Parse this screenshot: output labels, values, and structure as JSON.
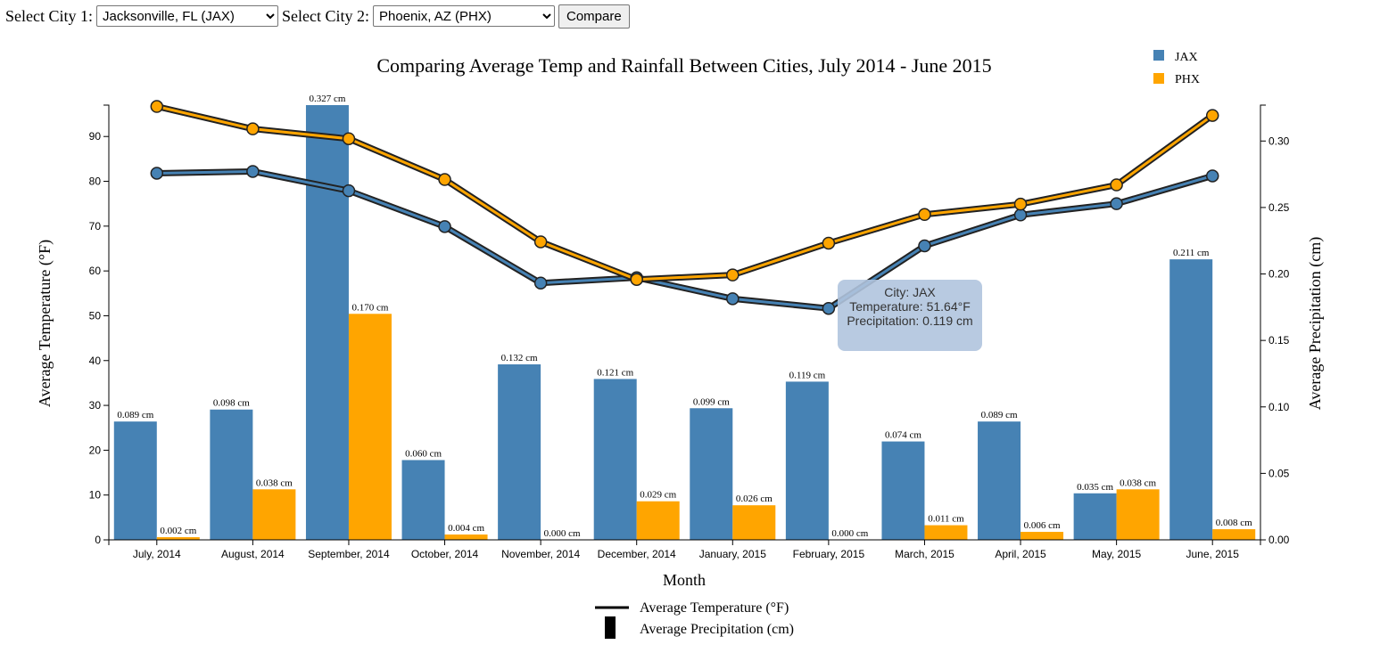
{
  "controls": {
    "city1_label": "Select City 1:",
    "city1_value": "Jacksonville, FL (JAX)",
    "city2_label": "Select City 2:",
    "city2_value": "Phoenix, AZ (PHX)",
    "compare_label": "Compare"
  },
  "tooltip": {
    "city": "City: JAX",
    "temperature": "Temperature: 51.64°F",
    "precipitation": "Precipitation: 0.119 cm"
  },
  "chart_data": {
    "type": "bar",
    "title": "Comparing Average Temp and Rainfall Between Cities, July 2014 - June 2015",
    "xlabel": "Month",
    "ylabel_left": "Average Temperature (°F)",
    "ylabel_right": "Average Precipitation (cm)",
    "categories": [
      "July, 2014",
      "August, 2014",
      "September, 2014",
      "October, 2014",
      "November, 2014",
      "December, 2014",
      "January, 2015",
      "February, 2015",
      "March, 2015",
      "April, 2015",
      "May, 2015",
      "June, 2015"
    ],
    "temp_ylim": [
      0,
      97
    ],
    "temp_ticks": [
      0,
      10,
      20,
      30,
      40,
      50,
      60,
      70,
      80,
      90
    ],
    "precip_ylim": [
      0,
      0.327
    ],
    "precip_ticks": [
      0.0,
      0.05,
      0.1,
      0.15,
      0.2,
      0.25,
      0.3
    ],
    "series": [
      {
        "name": "JAX",
        "color": "#4682b4",
        "precipitation": [
          0.089,
          0.098,
          0.327,
          0.06,
          0.132,
          0.121,
          0.099,
          0.119,
          0.074,
          0.089,
          0.035,
          0.211
        ],
        "temperature": [
          81.8,
          82.2,
          77.9,
          69.9,
          57.3,
          58.5,
          53.8,
          51.64,
          65.6,
          72.5,
          75.0,
          81.2
        ]
      },
      {
        "name": "PHX",
        "color": "#ffa500",
        "precipitation": [
          0.002,
          0.038,
          0.17,
          0.004,
          0.0,
          0.029,
          0.026,
          0.0,
          0.011,
          0.006,
          0.038,
          0.008
        ],
        "temperature": [
          96.7,
          91.7,
          89.5,
          80.4,
          66.5,
          58.1,
          59.1,
          66.2,
          72.6,
          74.9,
          79.2,
          94.7
        ]
      }
    ],
    "legend": [
      "JAX",
      "PHX"
    ],
    "legend_placement": "top-right",
    "key": {
      "line_label": "Average Temperature (°F)",
      "bar_label": "Average Precipitation (cm)"
    },
    "bar_label_suffix": " cm"
  }
}
